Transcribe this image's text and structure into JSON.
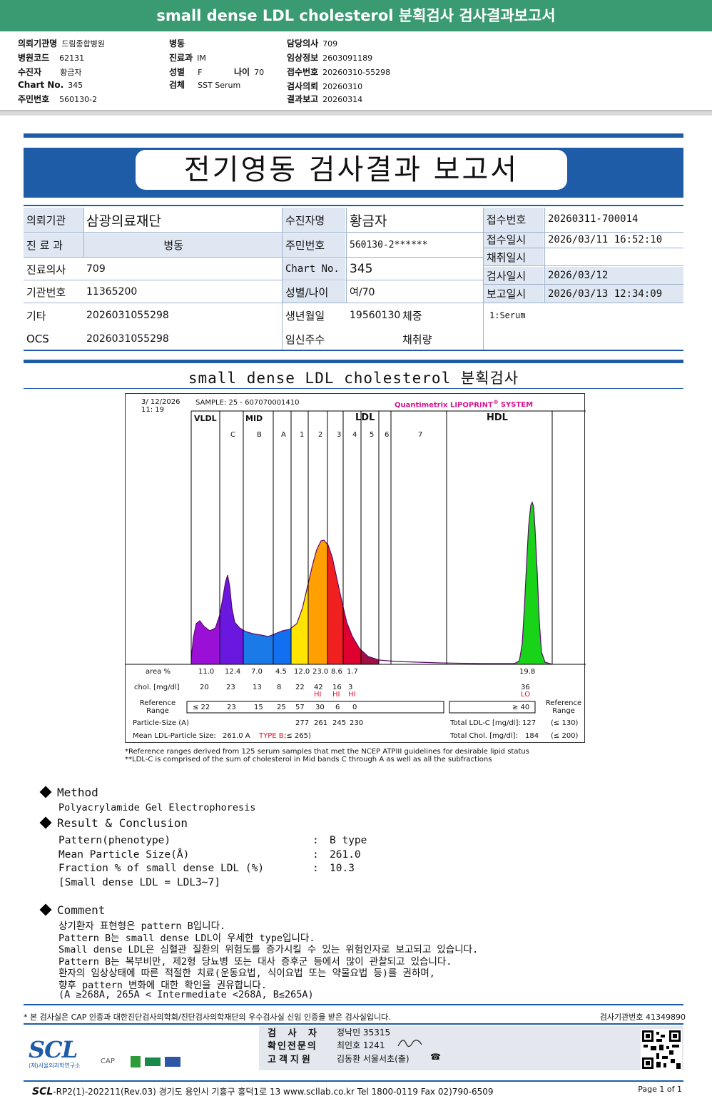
{
  "header": {
    "title": "small dense LDL cholesterol 분획검사 검사결과보고서",
    "info": {
      "institution_label": "의뢰기관명",
      "institution": "드림종합병원",
      "hospital_code_label": "병원코드",
      "hospital_code": "62131",
      "patient_label": "수진자",
      "patient": "황금자",
      "chart_label": "Chart No.",
      "chart": "345",
      "rrn_label": "주민번호",
      "rrn": "560130-2",
      "ward_label": "병동",
      "ward": "",
      "dept_label": "진료과",
      "dept": "IM",
      "sex_label": "성별",
      "sex": "F",
      "age_label": "나이",
      "age": "70",
      "specimen_label": "검체",
      "specimen": "SST Serum",
      "doctor_label": "담당의사",
      "doctor": "709",
      "clinical_label": "임상정보",
      "clinical": "2603091189",
      "receipt_label": "접수번호",
      "receipt": "20260310-55298",
      "request_label": "검사의뢰",
      "request": "20260310",
      "report_label": "결과보고",
      "report": "20260314"
    }
  },
  "report": {
    "title": "전기영동 검사결과 보고서",
    "grid": {
      "institution_label": "의뢰기관",
      "institution": "삼광의료재단",
      "dept_label": "진 료 과",
      "ward": "병동",
      "doctor_label": "진료의사",
      "doctor": "709",
      "org_no_label": "기관번호",
      "org_no": "11365200",
      "etc_label": "기타",
      "etc": "2026031055298",
      "ocs_label": "OCS",
      "ocs": "2026031055298",
      "patient_label": "수진자명",
      "patient": "황금자",
      "rrn_label": "주민번호",
      "rrn": "560130-2******",
      "chart_label": "Chart No.",
      "chart": "345",
      "sexage_label": "성별/나이",
      "sexage": "여/70",
      "birth_label": "생년월일",
      "birth": "19560130",
      "weight_label": "체중",
      "pregnancy_label": "임신주수",
      "volume_label": "채취량",
      "receipt_no_label": "접수번호",
      "receipt_no": "20260311-700014",
      "receipt_date_label": "접수일시",
      "receipt_date": "2026/03/11 16:52:10",
      "collect_label": "채취일시",
      "collect": "",
      "test_date_label": "검사일시",
      "test_date": "2026/03/12",
      "report_date_label": "보고일시",
      "report_date": "2026/03/13 12:34:09",
      "specimen": "1:Serum"
    },
    "section_title": "small dense LDL cholesterol 분획검사"
  },
  "chart_data": {
    "type": "area",
    "date": "3/ 12/2026",
    "time": "11: 19",
    "sample": "SAMPLE:   25 - 607070001410",
    "system": "Quantimetrix LIPOPRINT",
    "system_suffix": "SYSTEM",
    "system_mark": "®",
    "groups": [
      "VLDL",
      "MID",
      "LDL",
      "HDL"
    ],
    "bands": [
      "C",
      "B",
      "A",
      "1",
      "2",
      "3",
      "4",
      "5",
      "6",
      "7"
    ],
    "area_label": "area %",
    "area": [
      "11.0",
      "12.4",
      "7.0",
      "4.5",
      "12.0",
      "23.0",
      "8.6",
      "1.7",
      "",
      "",
      "",
      "19.8"
    ],
    "chol_label": "chol. [mg/dl]",
    "chol": [
      "20",
      "23",
      "13",
      "8",
      "22",
      "42",
      "16",
      "3",
      "",
      "",
      "",
      "36"
    ],
    "flags": [
      "",
      "",
      "",
      "",
      "",
      "HI",
      "HI",
      "HI",
      "",
      "",
      "",
      "LO"
    ],
    "ref_label": "Reference Range",
    "ref_left": [
      "≤ 22",
      "23",
      "15",
      "25",
      "57",
      "30",
      "6",
      "0"
    ],
    "ref_hdl": "≥ 40",
    "ref_right_label": "Reference Range",
    "particle_label": "Particle-Size (A)",
    "particle": [
      "277",
      "261",
      "245",
      "230"
    ],
    "mean_label": "Mean LDL-Particle Size:",
    "mean_value": "261.0 A",
    "mean_type": "TYPE B",
    "mean_cond": ";≤ 265)",
    "total_ldlc_label": "Total LDL-C [mg/dl]:",
    "total_ldlc": "127",
    "total_ldlc_ref": "(≤ 130)",
    "total_chol_label": "Total Chol. [mg/dl]:",
    "total_chol": "184",
    "total_chol_ref": "(≤ 200)",
    "colors": {
      "vldl": "#9b10d6",
      "midc": "#6a18e0",
      "midb": "#1a7ae8",
      "mida": "#1070f0",
      "ldl1": "#ffe400",
      "ldl2": "#ffa000",
      "ldl3": "#f02020",
      "ldl4": "#e00030",
      "hdl": "#18d318",
      "flag": "#e0102a"
    }
  },
  "footnotes": [
    "*Reference ranges derived from 125 serum samples that met the NCEP ATPIII guidelines for desirable lipid status",
    "**LDL-C is comprised of the sum of cholesterol in Mid bands C through A as well as all the subfractions"
  ],
  "method": {
    "heading": "Method",
    "text": "Polyacrylamide Gel Electrophoresis"
  },
  "result": {
    "heading": "Result & Conclusion",
    "rows": [
      {
        "label": "Pattern(phenotype)",
        "value": "B type"
      },
      {
        "label": "Mean Particle Size(Å)",
        "value": "261.0"
      },
      {
        "label": "Fraction % of small dense LDL (%)",
        "value": "10.3"
      }
    ],
    "note": "[Small dense LDL = LDL3~7]"
  },
  "comment": {
    "heading": "Comment",
    "lines": [
      "상기환자 표현형은 pattern B입니다.",
      "Pattern B는 small dense LDL이 우세한 type입니다.",
      "Small dense LDL은 심혈관 질환의 위험도를 증가시킬 수 있는 위험인자로 보고되고 있습니다.",
      "Pattern B는 복부비만, 제2형 당뇨병 또는 대사 증후군 등에서 많이 관찰되고 있습니다.",
      "환자의 임상상태에 따른 적절한 치료(운동요법, 식이요법 또는 약물요법 등)를 권하며,",
      "향후 pattern 변화에 대한 확인을 권유합니다.",
      "(A ≥268A, 265A < Intermediate <268A, B≤265A)"
    ]
  },
  "footer": {
    "notice": "* 본 검사실은 CAP 인증과 대한진단검사의학회/진단검사의학재단의 우수검사실 신임 인증을 받은 검사실입니다.",
    "org_code": "검사기관번호 41349890",
    "examiner_label": "검 사 자",
    "examiner": "정낙민 35315",
    "confirm_label": "확인전문의",
    "confirm": "최인호 1241",
    "support_label": "고객지원",
    "support": "김동환 서울서초(출)",
    "logo": "SCL",
    "logo_sub": "(재)서울의과학연구소",
    "cert_cap": "CAP",
    "address_prefix": "SCL",
    "address": "-RP2(1)-202211(Rev.03)  경기도 용인시 기흥구 흥덕1로 13  www.scllab.co.kr  Tel 1800-0119  Fax 02)790-6509",
    "page": "Page 1 of 1"
  }
}
